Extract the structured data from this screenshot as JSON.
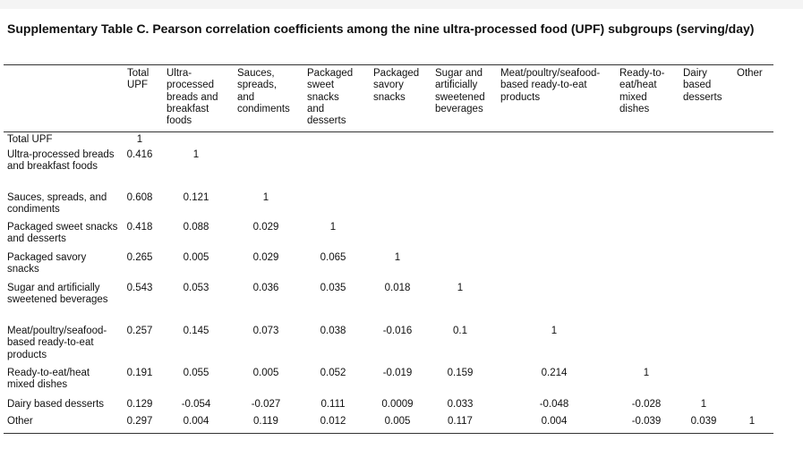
{
  "title": "Supplementary Table C. Pearson correlation coefficients among the nine ultra-processed food (UPF) subgroups (serving/day)",
  "columns": [
    "Total\nUPF",
    "Ultra-\nprocessed\nbreads and\nbreakfast\nfoods",
    "Sauces,\nspreads,\nand\ncondiments",
    "Packaged\nsweet\nsnacks\nand\ndesserts",
    "Packaged\nsavory\nsnacks",
    "Sugar and\nartificially\nsweetened\nbeverages",
    "Meat/poultry/seafood-\nbased ready-to-eat\nproducts",
    "Ready-to-\neat/heat\nmixed\ndishes",
    "Dairy\nbased\ndesserts",
    "Other"
  ],
  "rows": [
    {
      "label": "Total UPF",
      "values": [
        "1"
      ]
    },
    {
      "label": "Ultra-processed breads and breakfast foods",
      "values": [
        "0.416",
        "1"
      ]
    },
    {
      "label": "Sauces, spreads, and condiments",
      "values": [
        "0.608",
        "0.121",
        "1"
      ]
    },
    {
      "label": "Packaged sweet snacks and desserts",
      "values": [
        "0.418",
        "0.088",
        "0.029",
        "1"
      ]
    },
    {
      "label": "Packaged savory snacks",
      "values": [
        "0.265",
        "0.005",
        "0.029",
        "0.065",
        "1"
      ]
    },
    {
      "label": "Sugar and artificially sweetened beverages",
      "values": [
        "0.543",
        "0.053",
        "0.036",
        "0.035",
        "0.018",
        "1"
      ]
    },
    {
      "label": "Meat/poultry/seafood-based ready-to-eat products",
      "values": [
        "0.257",
        "0.145",
        "0.073",
        "0.038",
        "-0.016",
        "0.1",
        "1"
      ]
    },
    {
      "label": "Ready-to-eat/heat mixed dishes",
      "values": [
        "0.191",
        "0.055",
        "0.005",
        "0.052",
        "-0.019",
        "0.159",
        "0.214",
        "1"
      ]
    },
    {
      "label": "Dairy based desserts",
      "values": [
        "0.129",
        "-0.054",
        "-0.027",
        "0.111",
        "0.0009",
        "0.033",
        "-0.048",
        "-0.028",
        "1"
      ]
    },
    {
      "label": "Other",
      "values": [
        "0.297",
        "0.004",
        "0.119",
        "0.012",
        "0.005",
        "0.117",
        "0.004",
        "-0.039",
        "0.039",
        "1"
      ]
    }
  ]
}
